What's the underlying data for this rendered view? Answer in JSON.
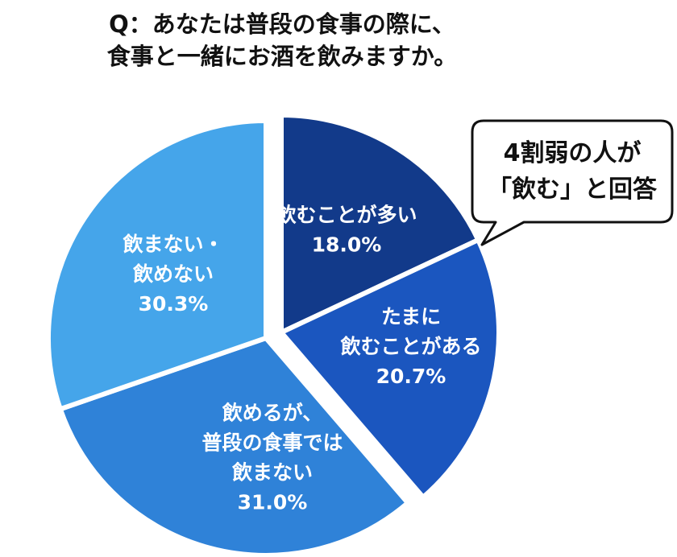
{
  "question": {
    "line1": "Q：あなたは普段の食事の際に、",
    "line2": "食事と一緒にお酒を飲みますか。"
  },
  "callout": {
    "line1": "4割弱の人が",
    "line2": "「飲む」と回答"
  },
  "chart_data": {
    "type": "pie",
    "title": "Q：あなたは普段の食事の際に、食事と一緒にお酒を飲みますか。",
    "slices": [
      {
        "label_lines": [
          "飲むことが多い"
        ],
        "percent_text": "18.0%",
        "value": 18.0,
        "color": "#123a8a",
        "exploded": true
      },
      {
        "label_lines": [
          "たまに",
          "飲むことがある"
        ],
        "percent_text": "20.7%",
        "value": 20.7,
        "color": "#1b56bf",
        "exploded": true
      },
      {
        "label_lines": [
          "飲めるが、",
          "普段の食事では",
          "飲まない"
        ],
        "percent_text": "31.0%",
        "value": 31.0,
        "color": "#2f82d8",
        "exploded": false
      },
      {
        "label_lines": [
          "飲まない・",
          "飲めない"
        ],
        "percent_text": "30.3%",
        "value": 30.3,
        "color": "#45a5ea",
        "exploded": false
      }
    ]
  }
}
